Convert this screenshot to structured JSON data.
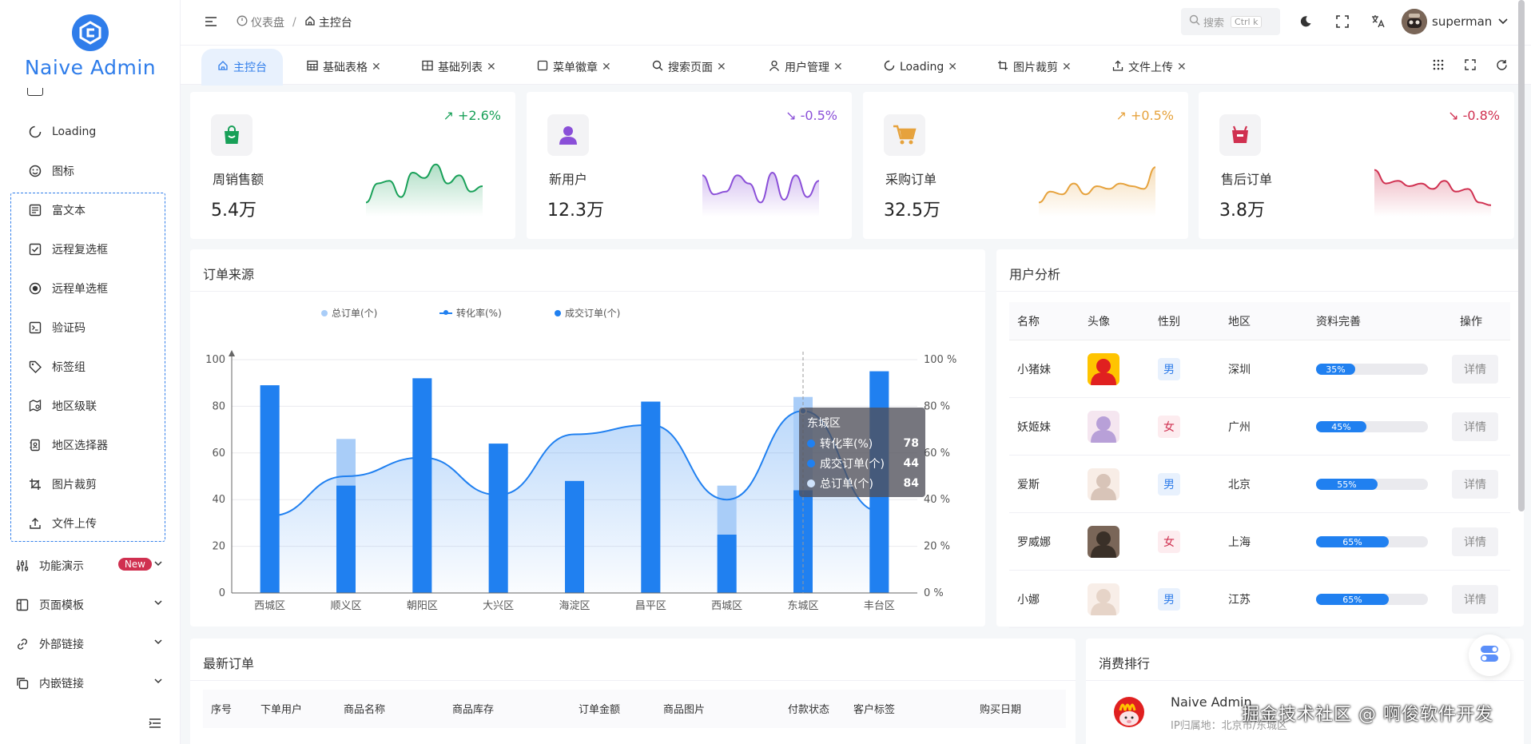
{
  "app": {
    "name": "Naive Admin"
  },
  "sidebar": {
    "items": [
      {
        "label": "Loading",
        "icon": "loading-icon"
      },
      {
        "label": "图标",
        "icon": "smile-icon"
      },
      {
        "label": "富文本",
        "icon": "richtext-icon"
      },
      {
        "label": "远程复选框",
        "icon": "checkbox-icon"
      },
      {
        "label": "远程单选框",
        "icon": "radio-icon"
      },
      {
        "label": "验证码",
        "icon": "terminal-icon"
      },
      {
        "label": "标签组",
        "icon": "tag-icon"
      },
      {
        "label": "地区级联",
        "icon": "map-icon"
      },
      {
        "label": "地区选择器",
        "icon": "region-icon"
      },
      {
        "label": "图片裁剪",
        "icon": "crop-icon"
      },
      {
        "label": "文件上传",
        "icon": "upload-icon"
      }
    ],
    "groups": [
      {
        "label": "功能演示",
        "badge": "New"
      },
      {
        "label": "页面模板"
      },
      {
        "label": "外部链接"
      },
      {
        "label": "内嵌链接"
      }
    ]
  },
  "header": {
    "breadcrumb": [
      "仪表盘",
      "主控台"
    ],
    "search_label": "搜索",
    "search_shortcut": "Ctrl k",
    "username": "superman"
  },
  "tabs": [
    {
      "label": "主控台"
    },
    {
      "label": "基础表格"
    },
    {
      "label": "基础列表"
    },
    {
      "label": "菜单徽章"
    },
    {
      "label": "搜索页面"
    },
    {
      "label": "用户管理"
    },
    {
      "label": "Loading"
    },
    {
      "label": "图片裁剪"
    },
    {
      "label": "文件上传"
    }
  ],
  "stats": [
    {
      "label": "周销售额",
      "value": "5.4万",
      "change": "+2.6%",
      "color": "#18a058",
      "spark": [
        20,
        55,
        60,
        30,
        75,
        65,
        90,
        55,
        70,
        40,
        50
      ]
    },
    {
      "label": "新用户",
      "value": "12.3万",
      "change": "-0.5%",
      "color": "#8a4fd8",
      "spark": [
        70,
        35,
        40,
        70,
        55,
        20,
        75,
        25,
        70,
        30,
        60
      ]
    },
    {
      "label": "采购订单",
      "value": "32.5万",
      "change": "+0.5%",
      "color": "#e6a23c",
      "spark": [
        20,
        40,
        35,
        55,
        35,
        50,
        45,
        55,
        50,
        45,
        85
      ]
    },
    {
      "label": "售后订单",
      "value": "3.8万",
      "change": "-0.8%",
      "color": "#d03050",
      "spark": [
        80,
        55,
        60,
        50,
        55,
        45,
        60,
        40,
        45,
        20,
        15
      ]
    }
  ],
  "orders_source": {
    "title": "订单来源",
    "chart_data": {
      "type": "bar",
      "categories": [
        "西城区",
        "顺义区",
        "朝阳区",
        "大兴区",
        "海淀区",
        "昌平区",
        "西城区",
        "东城区",
        "丰台区"
      ],
      "series": [
        {
          "name": "总订单(个)",
          "type": "bar",
          "color": "#a9cdf8",
          "values": [
            89,
            66,
            92,
            64,
            48,
            82,
            46,
            84,
            95
          ]
        },
        {
          "name": "转化率(%)",
          "type": "line",
          "color": "#2080f0",
          "values": [
            33,
            50,
            58,
            42,
            68,
            72,
            40,
            78,
            35
          ]
        },
        {
          "name": "成交订单(个)",
          "type": "bar",
          "color": "#2080f0",
          "values": [
            89,
            46,
            92,
            64,
            48,
            82,
            25,
            44,
            95
          ]
        }
      ],
      "y_left": {
        "ticks": [
          "0",
          "20",
          "40",
          "60",
          "80",
          "100"
        ],
        "range": [
          0,
          100
        ]
      },
      "y_right": {
        "ticks": [
          "0 %",
          "20 %",
          "40 %",
          "60 %",
          "80 %",
          "100 %"
        ],
        "range": [
          0,
          100
        ]
      },
      "legend": "top-center",
      "grid": true
    },
    "tooltip": {
      "title": "东城区",
      "rows": [
        {
          "label": "转化率(%)",
          "value": "78",
          "color": "#2080f0"
        },
        {
          "label": "成交订单(个)",
          "value": "44",
          "color": "#2080f0"
        },
        {
          "label": "总订单(个)",
          "value": "84",
          "color": "#cfe2fb"
        }
      ]
    }
  },
  "user_analysis": {
    "title": "用户分析",
    "columns": [
      "名称",
      "头像",
      "性别",
      "地区",
      "资料完善",
      "操作"
    ],
    "rows": [
      {
        "name": "小猪妹",
        "gender": "男",
        "region": "深圳",
        "progress": 35,
        "progress_label": "35%",
        "action": "详情"
      },
      {
        "name": "妖姬妹",
        "gender": "女",
        "region": "广州",
        "progress": 45,
        "progress_label": "45%",
        "action": "详情"
      },
      {
        "name": "爱斯",
        "gender": "男",
        "region": "北京",
        "progress": 55,
        "progress_label": "55%",
        "action": "详情"
      },
      {
        "name": "罗威娜",
        "gender": "女",
        "region": "上海",
        "progress": 65,
        "progress_label": "65%",
        "action": "详情"
      },
      {
        "name": "小娜",
        "gender": "男",
        "region": "江苏",
        "progress": 65,
        "progress_label": "65%",
        "action": "详情"
      }
    ]
  },
  "latest_orders": {
    "title": "最新订单",
    "columns": [
      "序号",
      "下单用户",
      "商品名称",
      "商品库存",
      "订单金额",
      "商品图片",
      "付款状态",
      "客户标签",
      "购买日期"
    ]
  },
  "spending_rank": {
    "title": "消费排行",
    "first": {
      "name": "Naive Admin",
      "location": "IP归属地：北京市/东城区"
    }
  },
  "watermark": "掘金技术社区 @ 啊俊软件开发",
  "colors": {
    "accent": "#2f7dea",
    "male_bg": "#e8f1fd",
    "male_fg": "#2f7dea",
    "female_bg": "#fdecef",
    "female_fg": "#d03050"
  }
}
